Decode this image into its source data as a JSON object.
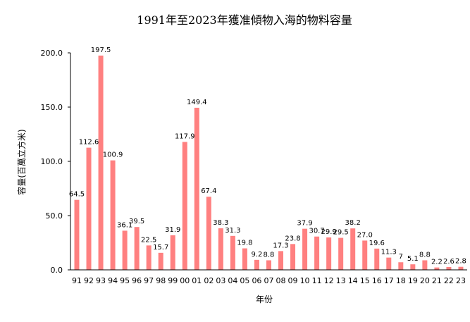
{
  "chart_data": {
    "type": "bar",
    "title": "1991年至2023年獲准傾物入海的物料容量",
    "xlabel": "年份",
    "ylabel": "容量(百萬立方米)",
    "ylim": [
      0,
      200
    ],
    "yticks": [
      "0.0",
      "50.0",
      "100.0",
      "150.0",
      "200.0"
    ],
    "grid": false,
    "bar_color": "#ff8080",
    "categories": [
      "91",
      "92",
      "93",
      "94",
      "95",
      "96",
      "97",
      "98",
      "99",
      "00",
      "01",
      "02",
      "03",
      "04",
      "05",
      "06",
      "07",
      "08",
      "09",
      "10",
      "11",
      "12",
      "13",
      "14",
      "15",
      "16",
      "17",
      "18",
      "19",
      "20",
      "21",
      "22",
      "23"
    ],
    "values": [
      64.5,
      112.6,
      197.5,
      100.9,
      36.1,
      39.5,
      22.5,
      15.7,
      31.9,
      117.9,
      149.4,
      67.4,
      38.3,
      31.3,
      19.8,
      9.2,
      8.8,
      17.3,
      23.8,
      37.9,
      30.7,
      29.9,
      29.5,
      38.2,
      27.0,
      19.6,
      11.3,
      7,
      5.1,
      8.8,
      2.2,
      2.6,
      2.8
    ],
    "labels": [
      "64.5",
      "112.6",
      "197.5",
      "100.9",
      "36.1",
      "39.5",
      "22.5",
      "15.7",
      "31.9",
      "117.9",
      "149.4",
      "67.4",
      "38.3",
      "31.3",
      "19.8",
      "9.2",
      "8.8",
      "17.3",
      "23.8",
      "37.9",
      "30.7",
      "29.9",
      "29.5",
      "38.2",
      "27.0",
      "19.6",
      "11.3",
      "7",
      "5.1",
      "8.8",
      "2.2",
      "2.6",
      "2.8"
    ]
  }
}
